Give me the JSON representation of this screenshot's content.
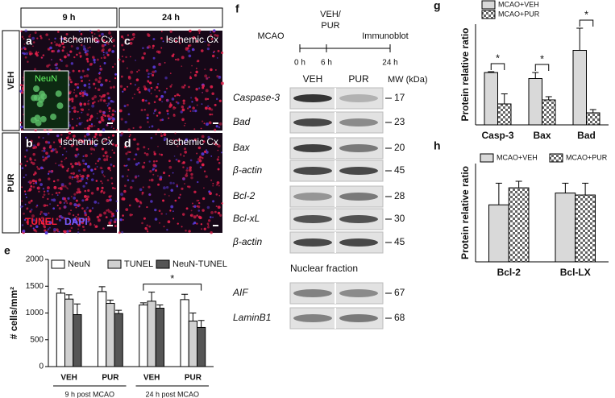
{
  "micrographs": {
    "columns": [
      "9 h",
      "24 h"
    ],
    "rows": [
      "VEH",
      "PUR"
    ],
    "panels": [
      {
        "letter": "a",
        "label": "Ischemic Cx"
      },
      {
        "letter": "c",
        "label": "Ischemic Cx"
      },
      {
        "letter": "b",
        "label": "Ischemic Cx"
      },
      {
        "letter": "d",
        "label": "Ischemic Cx"
      }
    ],
    "inset": "NeuN",
    "stain1": "TUNEL",
    "stain2": "DAPI"
  },
  "blot": {
    "letter": "f",
    "timeline": {
      "left": "MCAO",
      "treatment": "VEH/\nPUR",
      "right": "Immunoblot",
      "times": [
        "0 h",
        "6 h",
        "24 h"
      ]
    },
    "columns": [
      "VEH",
      "PUR"
    ],
    "mw_header": "MW (kDa)",
    "rows": [
      {
        "label": "Caspase-3",
        "mw": 17
      },
      {
        "label": "Bad",
        "mw": 23
      },
      {
        "label": "Bax",
        "mw": 20
      },
      {
        "label": "β-actin",
        "mw": 45
      },
      {
        "label": "Bcl-2",
        "mw": 28
      },
      {
        "label": "Bcl-xL",
        "mw": 30
      },
      {
        "label": "β-actin",
        "mw": 45
      },
      {
        "label": "AIF",
        "mw": 67
      },
      {
        "label": "LaminB1",
        "mw": 68
      }
    ],
    "section": "Nuclear fraction"
  },
  "chart_data": [
    {
      "type": "bar",
      "letter": "e",
      "ylabel": "# cells/mm²",
      "categories": [
        "VEH",
        "PUR",
        "VEH",
        "PUR"
      ],
      "groups": [
        "9 h post MCAO",
        "24 h post MCAO"
      ],
      "ylim": [
        0,
        2000
      ],
      "yticks": [
        0,
        500,
        1000,
        1500,
        2000
      ],
      "legend": "top",
      "annotations": [
        "*"
      ],
      "series": [
        {
          "name": "NeuN",
          "color": "#ffffff",
          "values": [
            1370,
            1400,
            1150,
            1250
          ],
          "errors": [
            80,
            90,
            40,
            100
          ]
        },
        {
          "name": "TUNEL",
          "color": "#d0d0d0",
          "values": [
            1260,
            1180,
            1220,
            850
          ],
          "errors": [
            80,
            60,
            170,
            150
          ]
        },
        {
          "name": "NeuN-TUNEL",
          "color": "#555555",
          "values": [
            970,
            990,
            1090,
            730
          ],
          "errors": [
            200,
            60,
            60,
            130
          ]
        }
      ]
    },
    {
      "type": "bar",
      "letter": "g",
      "ylabel": "Protein relative ratio",
      "categories": [
        "Casp-3",
        "Bax",
        "Bad"
      ],
      "ylim": [
        0,
        2.5
      ],
      "legend": "top-left",
      "annotations": [
        "*",
        "*",
        "*"
      ],
      "series": [
        {
          "name": "MCAO+VEH",
          "color": "#d9d9d9",
          "values": [
            1.3,
            1.15,
            1.85
          ],
          "errors": [
            0.02,
            0.15,
            0.55
          ]
        },
        {
          "name": "MCAO+PUR",
          "color": "#888888",
          "hatch": true,
          "values": [
            0.52,
            0.62,
            0.3
          ],
          "errors": [
            0.25,
            0.08,
            0.08
          ]
        }
      ]
    },
    {
      "type": "bar",
      "letter": "h",
      "ylabel": "Protein relative ratio",
      "categories": [
        "Bcl-2",
        "Bcl-LX"
      ],
      "ylim": [
        0,
        1.5
      ],
      "legend": "top",
      "series": [
        {
          "name": "MCAO+VEH",
          "color": "#d9d9d9",
          "values": [
            0.87,
            1.05
          ],
          "errors": [
            0.33,
            0.15
          ]
        },
        {
          "name": "MCAO+PUR",
          "color": "#888888",
          "hatch": true,
          "values": [
            1.13,
            1.02
          ],
          "errors": [
            0.1,
            0.18
          ]
        }
      ]
    }
  ]
}
